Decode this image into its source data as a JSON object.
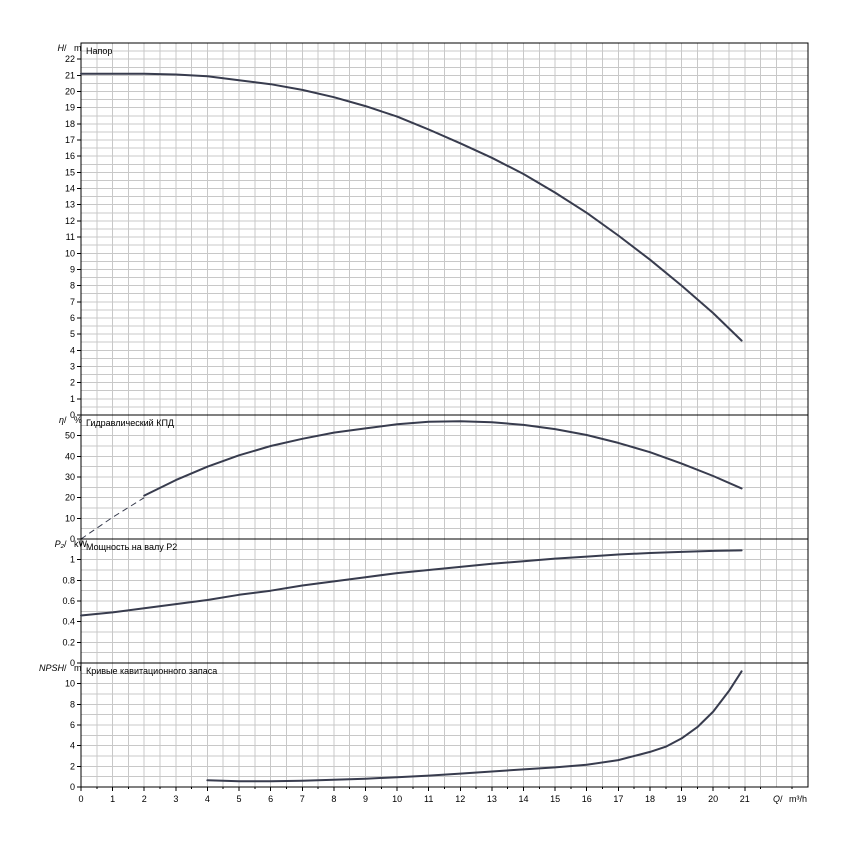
{
  "chart_data": {
    "type": "line",
    "x_axis": {
      "label_var": "Q",
      "label_sep": " / ",
      "label_unit": "m³/h",
      "range": [
        0,
        23
      ],
      "ticks": [
        0,
        1,
        2,
        3,
        4,
        5,
        6,
        7,
        8,
        9,
        10,
        11,
        12,
        13,
        14,
        15,
        16,
        17,
        18,
        19,
        20,
        21
      ]
    },
    "panels": [
      {
        "id": "head",
        "title": "Напор",
        "ylabel_var": "H",
        "ylabel_sep": " / ",
        "ylabel_unit": "m",
        "ylim": [
          0,
          23
        ],
        "yticks": [
          0,
          1,
          2,
          3,
          4,
          5,
          6,
          7,
          8,
          9,
          10,
          11,
          12,
          13,
          14,
          15,
          16,
          17,
          18,
          19,
          20,
          21,
          22
        ],
        "series": [
          {
            "style": "solid",
            "x": [
              0,
              2,
              3,
              4,
              5,
              6,
              7,
              8,
              9,
              10,
              11,
              12,
              13,
              14,
              15,
              16,
              17,
              18,
              19,
              20,
              20.9
            ],
            "y": [
              21.1,
              21.1,
              21.05,
              20.95,
              20.7,
              20.45,
              20.1,
              19.65,
              19.1,
              18.45,
              17.65,
              16.8,
              15.9,
              14.9,
              13.75,
              12.5,
              11.1,
              9.6,
              8.0,
              6.3,
              4.6
            ]
          }
        ]
      },
      {
        "id": "efficiency",
        "title": "Гидравлический КПД",
        "ylabel_var": "η",
        "ylabel_sep": " / ",
        "ylabel_unit": "%",
        "ylim": [
          0,
          60
        ],
        "yticks": [
          0,
          10,
          20,
          30,
          40,
          50
        ],
        "series": [
          {
            "style": "dashed",
            "x": [
              0,
              1,
              2
            ],
            "y": [
              0,
              10.5,
              20
            ]
          },
          {
            "style": "solid",
            "x": [
              2,
              3,
              4,
              5,
              6,
              7,
              8,
              9,
              10,
              11,
              12,
              13,
              14,
              15,
              16,
              17,
              18,
              19,
              20,
              20.9
            ],
            "y": [
              21,
              28.5,
              35,
              40.5,
              45,
              48.5,
              51.5,
              53.5,
              55.5,
              56.7,
              57,
              56.5,
              55.2,
              53.2,
              50.3,
              46.5,
              42,
              36.5,
              30.5,
              24.5
            ]
          }
        ]
      },
      {
        "id": "power",
        "title": "Мощность на валу P2",
        "ylabel_var": "P₂",
        "ylabel_sep": " / ",
        "ylabel_unit": "kW",
        "ylim": [
          0,
          1.2
        ],
        "yticks": [
          0,
          0.2,
          0.4,
          0.6,
          0.8,
          1
        ],
        "series": [
          {
            "style": "solid",
            "x": [
              0,
              1,
              2,
              3,
              4,
              5,
              6,
              7,
              8,
              9,
              10,
              11,
              12,
              13,
              14,
              15,
              16,
              17,
              18,
              19,
              20,
              20.9
            ],
            "y": [
              0.46,
              0.49,
              0.53,
              0.57,
              0.61,
              0.66,
              0.7,
              0.75,
              0.79,
              0.83,
              0.87,
              0.9,
              0.93,
              0.96,
              0.985,
              1.01,
              1.03,
              1.05,
              1.065,
              1.075,
              1.085,
              1.09
            ]
          }
        ]
      },
      {
        "id": "npsh",
        "title": "Кривые кавитационного запаса",
        "ylabel_var": "NPSH",
        "ylabel_sep": " / ",
        "ylabel_unit": "m",
        "ylim": [
          0,
          12
        ],
        "yticks": [
          0,
          2,
          4,
          6,
          8,
          10
        ],
        "series": [
          {
            "style": "solid",
            "x": [
              4,
              5,
              6,
              7,
              8,
              9,
              10,
              11,
              12,
              13,
              14,
              15,
              16,
              17,
              18,
              18.5,
              19,
              19.5,
              20,
              20.5,
              20.9
            ],
            "y": [
              0.65,
              0.55,
              0.55,
              0.6,
              0.7,
              0.8,
              0.95,
              1.1,
              1.3,
              1.5,
              1.7,
              1.9,
              2.15,
              2.6,
              3.4,
              3.9,
              4.7,
              5.8,
              7.3,
              9.3,
              11.2
            ]
          }
        ]
      }
    ],
    "grid": true,
    "legend": "none"
  }
}
